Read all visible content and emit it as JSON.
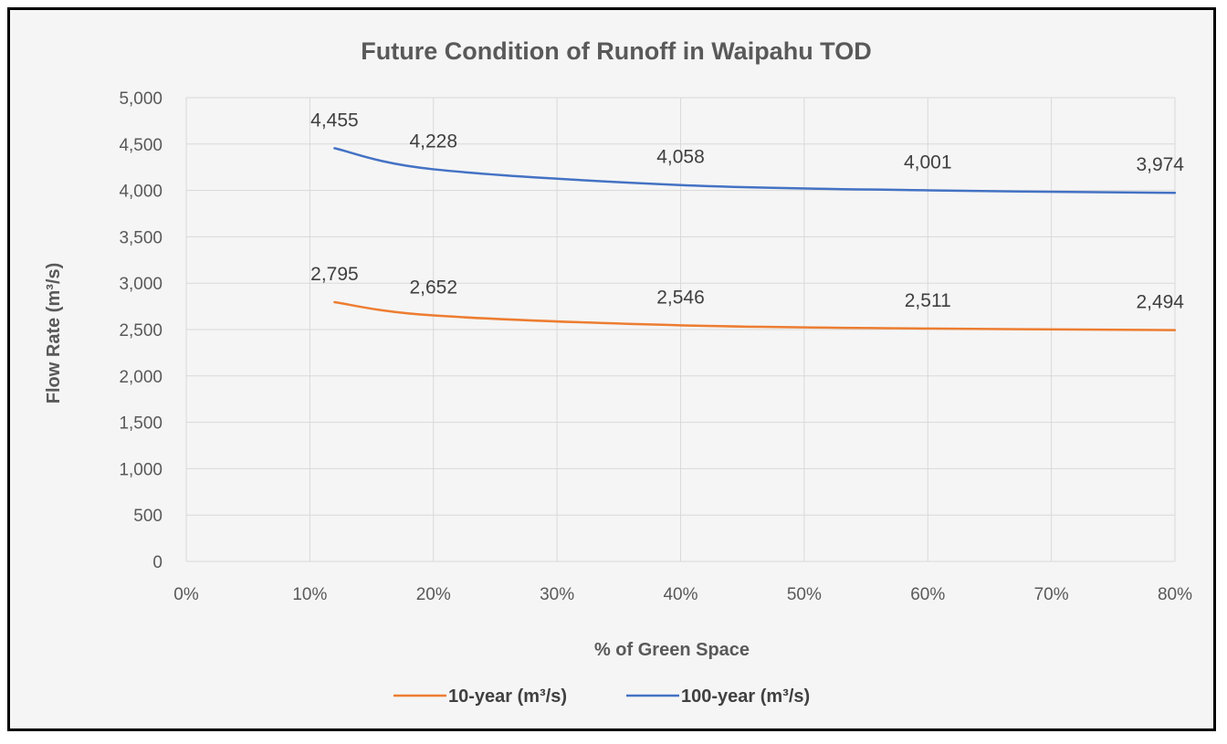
{
  "chart_data": {
    "type": "line",
    "title": "Future Condition of Runoff in Waipahu TOD",
    "xlabel": "% of Green Space",
    "ylabel": "Flow Rate (m³/s)",
    "xlim": [
      0,
      80
    ],
    "ylim": [
      0,
      5000
    ],
    "x_ticks": [
      "0%",
      "10%",
      "20%",
      "30%",
      "40%",
      "50%",
      "60%",
      "70%",
      "80%"
    ],
    "y_ticks": [
      "0",
      "500",
      "1,000",
      "1,500",
      "2,000",
      "2,500",
      "3,000",
      "3,500",
      "4,000",
      "4,500",
      "5,000"
    ],
    "grid": true,
    "legend_position": "bottom",
    "series": [
      {
        "name": "10-year (m³/s)",
        "color": "#ED7D31",
        "x": [
          12,
          20,
          40,
          60,
          80
        ],
        "values": [
          2795,
          2652,
          2546,
          2511,
          2494
        ],
        "labels": [
          "2,795",
          "2,652",
          "2,546",
          "2,511",
          "2,494"
        ]
      },
      {
        "name": "100-year (m³/s)",
        "color": "#4472C4",
        "x": [
          12,
          20,
          40,
          60,
          80
        ],
        "values": [
          4455,
          4228,
          4058,
          4001,
          3974
        ],
        "labels": [
          "4,455",
          "4,228",
          "4,058",
          "4,001",
          "3,974"
        ]
      }
    ]
  }
}
